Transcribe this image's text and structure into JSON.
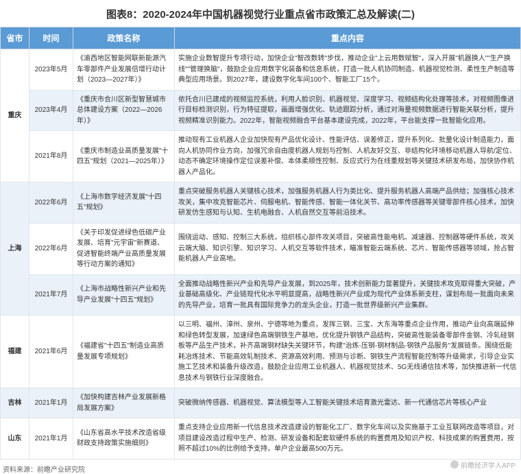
{
  "title": "图表8：2020-2024年中国机器视觉行业重点省市政策汇总及解读(二)",
  "columns": [
    "省市",
    "时间",
    "政策名称",
    "重点内容"
  ],
  "rows": [
    {
      "province": "重庆",
      "time": "2023年5月",
      "policy": "《渝西地区智能网联新能源汽车零部件产业发展倍增行动计划（2023—2027年）》",
      "content": "实施企业数智提升专项行动，加快企业\"智改数转\"步伐，推动企业\"上云用数赋智\"，深入开展\"机器换人\"\"生产换线\"\"管理换脑\"，鼓励企业应用数字化装备和信息系统，打造一批人机协同制造、机器视觉检测、柔性生产制造等典型应用场景。到2027年，建设数字化车间100个、智能工厂15个。",
      "rowClass": "odd"
    },
    {
      "province": "重庆",
      "time": "2023年4月",
      "policy": "《重庆市合川区新型智慧城市总体建设方案（2022—2026年）》",
      "content": "依托合川已建成的视频监控系统，利用人脸识别、机器视觉、深度学习、视频结构化处理等技术，对视频图像进行目标检测识别，行为特征提取，画面增强优化、轨迹跟踪分析，通过对海量视频数据进行智能关联分析，提升视频精准识别能力。2022年，智能视频融合平台基本建设完成，2022年，平台能支撑一批智能化应用。",
      "rowClass": "even"
    },
    {
      "province": "重庆",
      "time": "2021年8月",
      "policy": "《重庆市制造业高质量发展\"十四五\"规划（2021—2025年）》",
      "content": "推动现有工业机器人企业加快现有产品优化设计、性能评估、误差修正，提升系列化、批量化设计制造能力，面向人机协同作业方向，加强冗余自由度机器人规划与控制、人机友好交互、非结构化环境移动机器人导航/定位、动态不确定环境操作定位误差补偿、本体柔顺性控制、反应式行为在线重规划等关键技术研发布局，加快协作机器人产品化。",
      "rowClass": "odd"
    },
    {
      "province": "上海",
      "time": "2022年6月",
      "policy": "《上海市数字经济发展\"十四五\"规划》",
      "content": "重点突破服务机器人关键核心技术，加强服务机器人行为类比化、提升服务机器人高端产品供给；加强核心技术攻关，集中攻克智能芯片、伺服电机、智能传感、智能一体化关节、高功率传感器等关键零部件核心技术，加快研发仿生感知与认知、生机电融合、人机自然交互等前沿技术。",
      "rowClass": "even"
    },
    {
      "province": "上海",
      "time": "2022年6月",
      "policy": "《关于印发促进绿色低碳产业发展、培育\"元宇宙\"新赛道、促进智能终端产业高质量发展等行动方案的通知》",
      "content": "围绕运动、感知、控制三大系统，组织核心部件攻关项目，突破高性能电机、减速器、控制器等硬件系统，攻关云端大脑、知识引擎、知识学习、人机交互等软件技术，瞄准智能云端系统、芯片、智能传感器等领域，抢占智能机器人产业高地。",
      "rowClass": "odd"
    },
    {
      "province": "上海",
      "time": "2021年7月",
      "policy": "《上海市战略性新兴产业和先导产业发展\"十四五\"规划》",
      "content": "全面推动战略性新兴产业和先导产业发展，到2025年，技术创新能力显著提升，关键技术攻克取得重大突破，产业基础高级化、产业链现代化水平明显提高，战略性新兴产业成为现代产业体系新支柱，谋划布局一批面向未来的先导产业，培育一批具有国际竞争力的龙头企业，打造一批世界级新兴产业集群。",
      "rowClass": "even"
    },
    {
      "province": "福建",
      "time": "2021年6月",
      "policy": "《福建省\"十四五\"制造业高质量发展专项规划》",
      "content": "以三明、福州、漳州、泉州、宁德等地为重点，发挥三钢、三宝、大东海等重点企业作用，推动产业向高端延伸和绿色转型发展，加速绿色高端钢铁生产基地，优化提升钢铁产品结构，突破高性能装备零部件金钢、冷轧硅钢板等产品生产技术，补齐高端钢材缺失关键环节，构建\"治炼-压钢-钢材制品-钢铁产品服务\"发展链条。围绕低能耗冶炼技术、节能高效轧制技术、资源高效利用、预测与诊断、钢铁生产流程智能控制等升级需求，引导企业实施工艺技术和装备升级改造，鼓励企业应用工业机器人、机器视觉技术、5G无线通信技术等，加快推进新一代信息技术与钢铁行业深度融合。",
      "rowClass": "odd"
    },
    {
      "province": "吉林",
      "time": "2021年1月",
      "policy": "《加快构建吉林产业发展新格局发展方案》",
      "content": "突破微纳传感器、机器视觉、算法模型等人工智能关键技术培育激光雷达、新一代通信芯片等核心产业",
      "rowClass": "even"
    },
    {
      "province": "山东",
      "time": "2021年1月",
      "policy": "《山东省高水平技术改造省级财政支持政策实施细则》",
      "content": "重点支持企业应用新一代信息技术改造建设的智能化工厂、数字化车间以及实施基于工业互联网改造等项目，对项目建设改造过程中生产、检测、研发设备和配套软硬件系统的购置费用及知识产权、科技成果的购置费用，按照不超过10%的比例给予支持，单户企业最高500万元。",
      "rowClass": "odd"
    }
  ],
  "provinceSpans": [
    {
      "name": "重庆",
      "start": 0,
      "span": 3
    },
    {
      "name": "上海",
      "start": 3,
      "span": 3
    },
    {
      "name": "福建",
      "start": 6,
      "span": 1
    },
    {
      "name": "吉林",
      "start": 7,
      "span": 1
    },
    {
      "name": "山东",
      "start": 8,
      "span": 1
    }
  ],
  "source": "资料来源：前瞻产业研究院",
  "watermark": "前瞻经济学人APP",
  "colors": {
    "headerBg": "#5b9bd5",
    "evenBg": "#eaf1f8",
    "oddBg": "#ffffff",
    "border": "#e0e5ea"
  }
}
